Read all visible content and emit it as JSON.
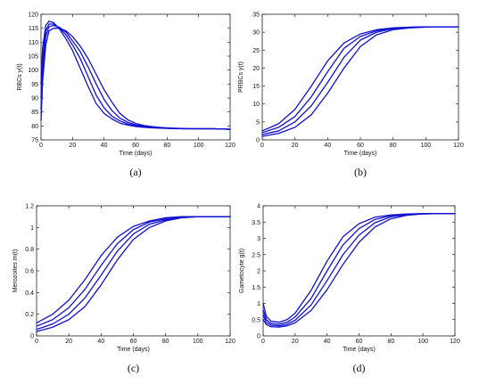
{
  "figure": {
    "colors": {
      "series": "#1010d0",
      "axis": "#222222",
      "tick_text": "#111111"
    }
  },
  "chart_data": [
    {
      "type": "line",
      "caption": "(a)",
      "xlabel": "Time (days)",
      "ylabel": "RBCs y(t)",
      "xlim": [
        0,
        120
      ],
      "ylim": [
        75,
        120
      ],
      "xticks": [
        0,
        20,
        40,
        60,
        80,
        100,
        120
      ],
      "yticks": [
        75,
        80,
        85,
        90,
        95,
        100,
        105,
        110,
        115,
        120
      ],
      "grid": false,
      "legend": "none",
      "series": [
        {
          "x": [
            0,
            1,
            3,
            5,
            8,
            12,
            16,
            20,
            25,
            30,
            35,
            40,
            45,
            50,
            55,
            60,
            65,
            70,
            75,
            80,
            85,
            90,
            95,
            100,
            110,
            120
          ],
          "y": [
            95,
            108,
            116,
            117.5,
            117,
            114.5,
            111,
            107,
            100.5,
            94,
            88,
            84.5,
            82.5,
            81,
            80.3,
            79.8,
            79.5,
            79.3,
            79.2,
            79.1,
            79,
            79,
            79,
            79,
            79,
            78.8
          ]
        },
        {
          "x": [
            0,
            1,
            3,
            5,
            8,
            12,
            16,
            20,
            25,
            30,
            35,
            40,
            45,
            50,
            55,
            60,
            65,
            70,
            75,
            80,
            85,
            90,
            95,
            100,
            110,
            120
          ],
          "y": [
            90,
            104,
            114,
            116.5,
            116.5,
            115,
            112.5,
            109,
            104,
            97.5,
            91,
            86.5,
            83.5,
            81.8,
            80.7,
            80.1,
            79.7,
            79.5,
            79.3,
            79.2,
            79.1,
            79,
            79,
            79,
            79,
            78.8
          ]
        },
        {
          "x": [
            0,
            1,
            3,
            5,
            8,
            12,
            16,
            20,
            25,
            30,
            35,
            40,
            45,
            50,
            55,
            60,
            65,
            70,
            75,
            80,
            85,
            90,
            95,
            100,
            110,
            120
          ],
          "y": [
            86,
            100,
            112,
            115.5,
            116,
            115.2,
            113.5,
            110.5,
            106.5,
            101,
            95,
            89.5,
            85.5,
            82.8,
            81.3,
            80.4,
            79.9,
            79.6,
            79.4,
            79.2,
            79.1,
            79,
            79,
            79,
            79,
            78.8
          ]
        },
        {
          "x": [
            0,
            1,
            3,
            5,
            8,
            12,
            16,
            20,
            25,
            30,
            35,
            40,
            45,
            50,
            55,
            60,
            65,
            70,
            75,
            80,
            85,
            90,
            95,
            100,
            110,
            120
          ],
          "y": [
            82,
            96,
            109,
            114,
            115,
            115,
            114,
            112,
            108.5,
            104,
            98.5,
            93,
            88.5,
            84.5,
            82.2,
            80.9,
            80.2,
            79.8,
            79.5,
            79.3,
            79.2,
            79.1,
            79,
            79,
            79,
            78.8
          ]
        }
      ]
    },
    {
      "type": "line",
      "caption": "(b)",
      "xlabel": "Time (days)",
      "ylabel": "PRBCs y(t)",
      "xlim": [
        0,
        120
      ],
      "ylim": [
        0,
        35
      ],
      "xticks": [
        0,
        20,
        40,
        60,
        80,
        100,
        120
      ],
      "yticks": [
        0,
        5,
        10,
        15,
        20,
        25,
        30,
        35
      ],
      "grid": false,
      "legend": "none",
      "series": [
        {
          "x": [
            0,
            10,
            20,
            30,
            40,
            50,
            60,
            70,
            80,
            90,
            100,
            110,
            120
          ],
          "y": [
            2.5,
            4.5,
            8.5,
            15,
            22,
            27,
            29.5,
            30.7,
            31.2,
            31.4,
            31.5,
            31.5,
            31.5
          ]
        },
        {
          "x": [
            0,
            10,
            20,
            30,
            40,
            50,
            60,
            70,
            80,
            90,
            100,
            110,
            120
          ],
          "y": [
            2,
            3.5,
            6.5,
            12,
            19,
            25.5,
            28.8,
            30.4,
            31.1,
            31.4,
            31.5,
            31.5,
            31.5
          ]
        },
        {
          "x": [
            0,
            10,
            20,
            30,
            40,
            50,
            60,
            70,
            80,
            90,
            100,
            110,
            120
          ],
          "y": [
            1.5,
            2.5,
            5,
            9.5,
            16,
            23,
            27.8,
            30,
            31,
            31.3,
            31.5,
            31.5,
            31.5
          ]
        },
        {
          "x": [
            0,
            10,
            20,
            30,
            40,
            50,
            60,
            70,
            80,
            90,
            100,
            110,
            120
          ],
          "y": [
            1,
            1.8,
            3.5,
            7,
            13,
            20,
            26,
            29.3,
            30.7,
            31.2,
            31.4,
            31.5,
            31.5
          ]
        }
      ]
    },
    {
      "type": "line",
      "caption": "(c)",
      "xlabel": "Time (days)",
      "ylabel": "Merozoites m(t)",
      "xlim": [
        0,
        120
      ],
      "ylim": [
        0,
        1.2
      ],
      "xticks": [
        0,
        20,
        40,
        60,
        80,
        100,
        120
      ],
      "yticks": [
        0,
        0.2,
        0.4,
        0.6,
        0.8,
        1,
        1.2
      ],
      "grid": false,
      "legend": "none",
      "series": [
        {
          "x": [
            0,
            10,
            20,
            30,
            40,
            50,
            60,
            70,
            80,
            90,
            100,
            110,
            120
          ],
          "y": [
            0.12,
            0.2,
            0.33,
            0.52,
            0.74,
            0.91,
            1.01,
            1.06,
            1.09,
            1.1,
            1.1,
            1.1,
            1.1
          ]
        },
        {
          "x": [
            0,
            10,
            20,
            30,
            40,
            50,
            60,
            70,
            80,
            90,
            100,
            110,
            120
          ],
          "y": [
            0.09,
            0.15,
            0.26,
            0.43,
            0.65,
            0.85,
            0.98,
            1.05,
            1.08,
            1.1,
            1.1,
            1.1,
            1.1
          ]
        },
        {
          "x": [
            0,
            10,
            20,
            30,
            40,
            50,
            60,
            70,
            80,
            90,
            100,
            110,
            120
          ],
          "y": [
            0.06,
            0.11,
            0.2,
            0.35,
            0.56,
            0.78,
            0.94,
            1.03,
            1.07,
            1.09,
            1.1,
            1.1,
            1.1
          ]
        },
        {
          "x": [
            0,
            10,
            20,
            30,
            40,
            50,
            60,
            70,
            80,
            90,
            100,
            110,
            120
          ],
          "y": [
            0.04,
            0.08,
            0.15,
            0.27,
            0.47,
            0.7,
            0.89,
            1.0,
            1.06,
            1.09,
            1.1,
            1.1,
            1.1
          ]
        }
      ]
    },
    {
      "type": "line",
      "caption": "(d)",
      "xlabel": "Time (days)",
      "ylabel": "Gametocyte g(t)",
      "xlim": [
        0,
        120
      ],
      "ylim": [
        0,
        4
      ],
      "xticks": [
        0,
        20,
        40,
        60,
        80,
        100,
        120
      ],
      "yticks": [
        0,
        0.5,
        1,
        1.5,
        2,
        2.5,
        3,
        3.5,
        4
      ],
      "grid": false,
      "legend": "none",
      "series": [
        {
          "x": [
            0,
            2,
            5,
            10,
            15,
            20,
            30,
            40,
            50,
            60,
            70,
            80,
            90,
            100,
            110,
            120
          ],
          "y": [
            1.0,
            0.6,
            0.45,
            0.42,
            0.5,
            0.7,
            1.4,
            2.3,
            3.05,
            3.45,
            3.65,
            3.72,
            3.75,
            3.76,
            3.76,
            3.76
          ]
        },
        {
          "x": [
            0,
            2,
            5,
            10,
            15,
            20,
            30,
            40,
            50,
            60,
            70,
            80,
            90,
            100,
            110,
            120
          ],
          "y": [
            0.8,
            0.5,
            0.38,
            0.36,
            0.42,
            0.58,
            1.15,
            2.0,
            2.8,
            3.3,
            3.58,
            3.7,
            3.74,
            3.76,
            3.76,
            3.76
          ]
        },
        {
          "x": [
            0,
            2,
            5,
            10,
            15,
            20,
            30,
            40,
            50,
            60,
            70,
            80,
            90,
            100,
            110,
            120
          ],
          "y": [
            0.65,
            0.42,
            0.33,
            0.31,
            0.36,
            0.48,
            0.95,
            1.7,
            2.5,
            3.1,
            3.48,
            3.66,
            3.73,
            3.75,
            3.76,
            3.76
          ]
        },
        {
          "x": [
            0,
            2,
            5,
            10,
            15,
            20,
            30,
            40,
            50,
            60,
            70,
            80,
            90,
            100,
            110,
            120
          ],
          "y": [
            0.5,
            0.35,
            0.28,
            0.27,
            0.31,
            0.4,
            0.78,
            1.42,
            2.2,
            2.88,
            3.35,
            3.6,
            3.71,
            3.75,
            3.76,
            3.76
          ]
        }
      ]
    }
  ]
}
